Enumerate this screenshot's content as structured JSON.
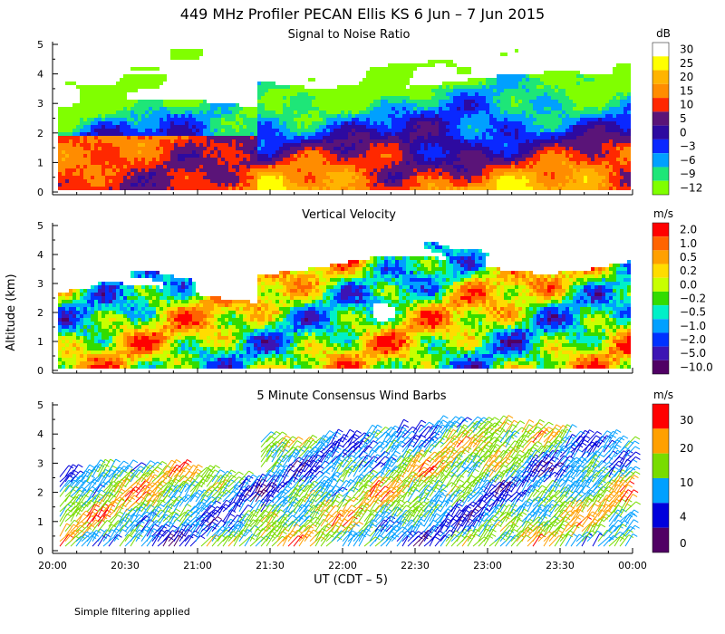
{
  "figure": {
    "title": "449 MHz Profiler PECAN Ellis KS  6 Jun –  7 Jun 2015",
    "ylabel": "Altitude (km)",
    "xlabel": "UT  (CDT – 5)",
    "footnote": "Simple filtering applied"
  },
  "chart_data": [
    {
      "type": "heatmap",
      "title": "Signal to Noise Ratio",
      "colorbar_unit": "dB",
      "colorbar_levels": [
        "30",
        "25",
        "20",
        "15",
        "10",
        "5",
        "0",
        "−3",
        "−6",
        "−9",
        "−12"
      ],
      "colorbar_colors": [
        "#ffffff",
        "#ffff00",
        "#ffb400",
        "#ff8c00",
        "#ff2800",
        "#5a1478",
        "#2d0aa0",
        "#0a28ff",
        "#00a0ff",
        "#1ee678",
        "#80ff00"
      ],
      "ylim": [
        0,
        5
      ],
      "yticks": [
        "0",
        "1",
        "2",
        "3",
        "4",
        "5"
      ],
      "xlim": [
        "20:00",
        "00:00"
      ],
      "xticks": []
    },
    {
      "type": "heatmap",
      "title": "Vertical Velocity",
      "colorbar_unit": "m/s",
      "colorbar_levels": [
        "2.0",
        "1.0",
        "0.5",
        "0.2",
        "0.0",
        "−0.2",
        "−0.5",
        "−1.0",
        "−2.0",
        "−5.0",
        "−10.0"
      ],
      "colorbar_colors": [
        "#ff0000",
        "#ff6400",
        "#ffa000",
        "#ffdc00",
        "#c8ff00",
        "#32dc00",
        "#00f0c8",
        "#00a0ff",
        "#0032ff",
        "#3c14b4",
        "#500064"
      ],
      "ylim": [
        0,
        5
      ],
      "yticks": [
        "0",
        "1",
        "2",
        "3",
        "4",
        "5"
      ],
      "xlim": [
        "20:00",
        "00:00"
      ],
      "xticks": []
    },
    {
      "type": "scatter",
      "title": "5 Minute Consensus Wind Barbs",
      "colorbar_unit": "m/s",
      "colorbar_levels": [
        "30",
        "20",
        "10",
        "4",
        "0"
      ],
      "colorbar_colors": [
        "#ff0000",
        "#ffa000",
        "#78dc00",
        "#00a0ff",
        "#0000dc",
        "#500064"
      ],
      "ylim": [
        0,
        5
      ],
      "yticks": [
        "0",
        "1",
        "2",
        "3",
        "4",
        "5"
      ],
      "xlim": [
        "20:00",
        "00:00"
      ],
      "xticks": [
        "20:00",
        "20:30",
        "21:00",
        "21:30",
        "22:00",
        "22:30",
        "23:00",
        "23:30",
        "00:00"
      ]
    }
  ]
}
